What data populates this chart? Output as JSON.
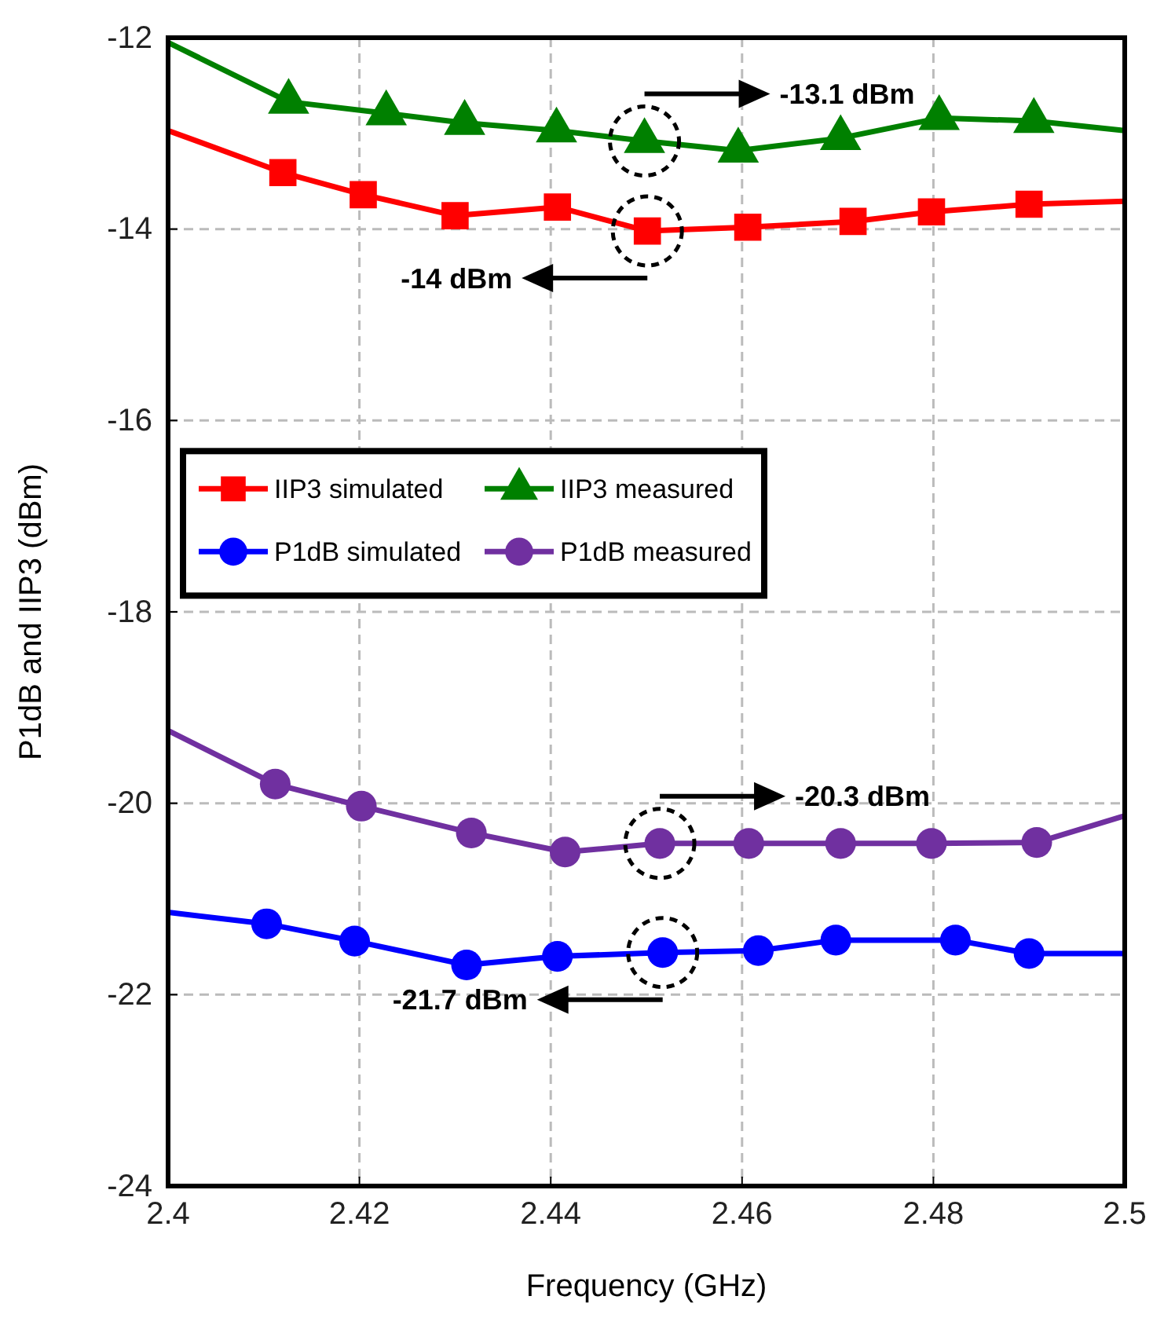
{
  "chart_data": {
    "type": "line",
    "xlabel": "Frequency (GHz)",
    "ylabel": "P1dB and IIP3 (dBm)",
    "xlim": [
      2.4,
      2.5
    ],
    "xticks": [
      2.4,
      2.42,
      2.44,
      2.46,
      2.48,
      2.5
    ],
    "ylim": [
      -24,
      -12
    ],
    "yticks": [
      -24,
      -22,
      -20,
      -18,
      -16,
      -14,
      -12
    ],
    "grid": true,
    "legend": "center",
    "line_style": "solid",
    "series": [
      {
        "name": "IIP3 simulated",
        "color": "#ff0000",
        "marker": "square",
        "x": [
          2.4,
          2.412,
          2.4204,
          2.43,
          2.4407,
          2.4501,
          2.4606,
          2.4716,
          2.4798,
          2.49,
          2.5
        ],
        "values": [
          -12.97,
          -13.41,
          -13.64,
          -13.86,
          -13.77,
          -14.02,
          -13.98,
          -13.92,
          -13.82,
          -13.74,
          -13.71
        ]
      },
      {
        "name": "IIP3 measured",
        "color": "#008000",
        "marker": "triangle",
        "x": [
          2.4,
          2.4126,
          2.4228,
          2.431,
          2.4406,
          2.4498,
          2.4596,
          2.4703,
          2.4806,
          2.4905,
          2.5
        ],
        "values": [
          -12.05,
          -12.67,
          -12.79,
          -12.89,
          -12.97,
          -13.08,
          -13.18,
          -13.05,
          -12.84,
          -12.87,
          -12.97
        ]
      },
      {
        "name": "P1dB simulated",
        "color": "#0000ff",
        "marker": "circle",
        "x": [
          2.4,
          2.4103,
          2.4195,
          2.4312,
          2.4407,
          2.4517,
          2.4617,
          2.4698,
          2.4823,
          2.49,
          2.5
        ],
        "values": [
          -21.14,
          -21.26,
          -21.44,
          -21.69,
          -21.6,
          -21.56,
          -21.54,
          -21.43,
          -21.43,
          -21.57,
          -21.57
        ]
      },
      {
        "name": "P1dB measured",
        "color": "#7030a0",
        "marker": "circle",
        "x": [
          2.4,
          2.4112,
          2.4202,
          2.4317,
          2.4415,
          2.4514,
          2.4607,
          2.4703,
          2.4798,
          2.4908,
          2.5
        ],
        "values": [
          -19.24,
          -19.8,
          -20.03,
          -20.31,
          -20.51,
          -20.42,
          -20.42,
          -20.42,
          -20.42,
          -20.41,
          -20.13
        ]
      }
    ],
    "annotations": [
      "-13.1 dBm",
      "-14 dBm",
      "-20.3 dBm",
      "-21.7 dBm"
    ]
  }
}
